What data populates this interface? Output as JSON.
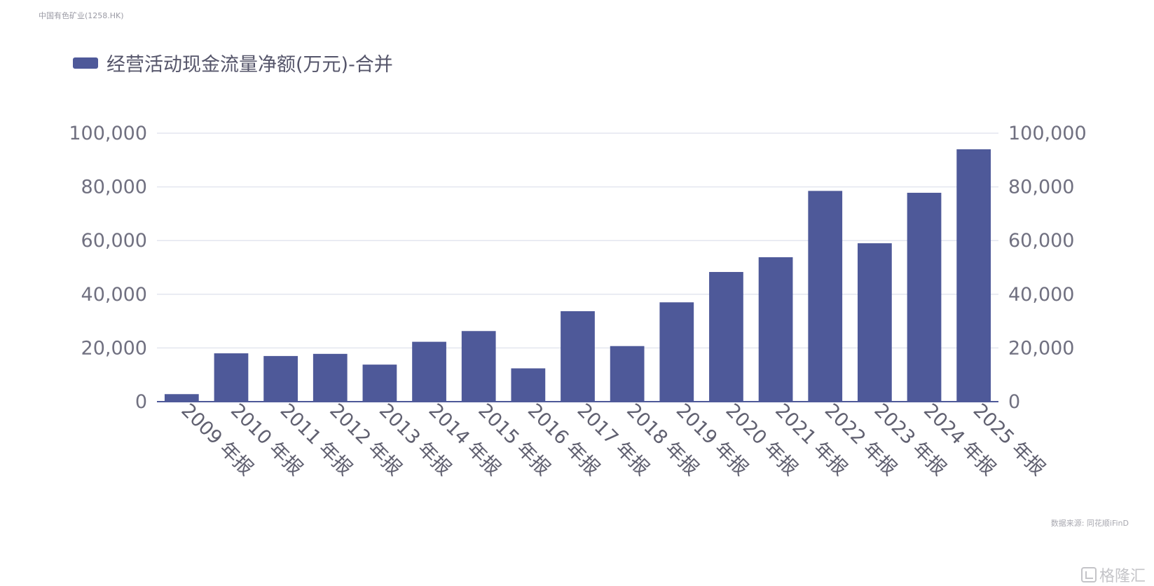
{
  "header": {
    "company": "中国有色矿业(1258.HK)"
  },
  "footer": {
    "source": "数据来源: 同花顺iFinD",
    "watermark": "格隆汇"
  },
  "colors": {
    "bar": "#4e5999",
    "grid": "#e3e6ef",
    "axis": "#4e5999"
  },
  "chart_data": {
    "type": "bar",
    "categories": [
      "2009 年报",
      "2010 年报",
      "2011 年报",
      "2012 年报",
      "2013 年报",
      "2014 年报",
      "2015 年报",
      "2016 年报",
      "2017 年报",
      "2018 年报",
      "2019 年报",
      "2020 年报",
      "2021 年报",
      "2022 年报",
      "2023 年报",
      "2024 年报",
      "2025 年报"
    ],
    "series": [
      {
        "name": "经营活动现金流量净额(万元)-合并",
        "values": [
          2800,
          18000,
          17000,
          17800,
          13800,
          22300,
          26300,
          12400,
          33700,
          20700,
          37000,
          48300,
          53800,
          78500,
          59000,
          77800,
          94000
        ]
      }
    ],
    "ylim": [
      0,
      100000
    ],
    "yticks": [
      "0",
      "20,000",
      "40,000",
      "60,000",
      "80,000",
      "100,000"
    ],
    "ytick_values": [
      0,
      20000,
      40000,
      60000,
      80000,
      100000
    ],
    "grid": true,
    "legend_position": "top-left"
  }
}
